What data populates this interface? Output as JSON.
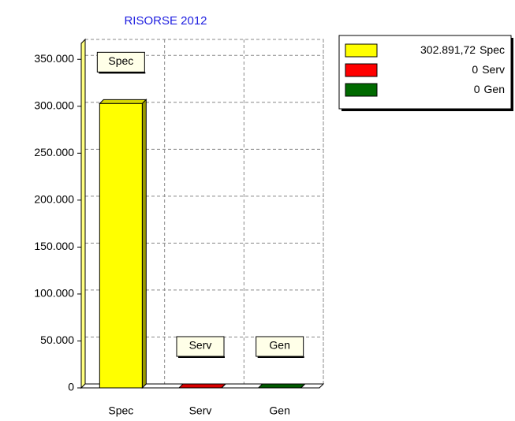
{
  "chart_data": {
    "type": "bar",
    "title": "RISORSE 2012",
    "categories": [
      "Spec",
      "Serv",
      "Gen"
    ],
    "values": [
      302891.72,
      0,
      0
    ],
    "value_labels": [
      "302.891,72",
      "0",
      "0"
    ],
    "colors": [
      "#ffff00",
      "#ff0000",
      "#006a00"
    ],
    "ylim": [
      0,
      367000
    ],
    "yticks": [
      0,
      {
        "value": 50000,
        "label": "50.000"
      },
      {
        "value": 100000,
        "label": "100.000"
      },
      {
        "value": 150000,
        "label": "150.000"
      },
      {
        "value": 200000,
        "label": "200.000"
      },
      {
        "value": 250000,
        "label": "250.000"
      },
      {
        "value": 300000,
        "label": "300.000"
      },
      {
        "value": 350000,
        "label": "350.000"
      }
    ],
    "grid": true,
    "legend": "top-right"
  }
}
